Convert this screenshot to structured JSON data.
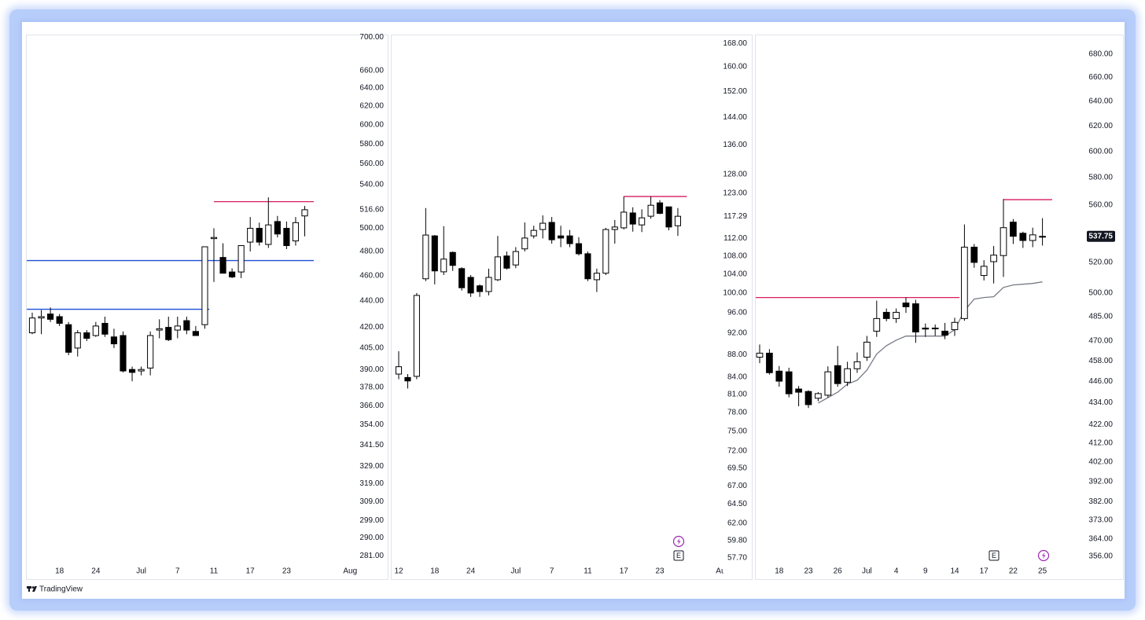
{
  "brand": "TradingView",
  "chart_data": [
    {
      "type": "candlestick",
      "log_scale": true,
      "up_color": "#ffffff",
      "down_color": "#000000",
      "categories": [
        null,
        null,
        null,
        "18",
        null,
        null,
        null,
        "24",
        null,
        null,
        null,
        null,
        "Jul",
        null,
        null,
        null,
        "7",
        null,
        null,
        null,
        "11",
        null,
        null,
        null,
        "17",
        null,
        null,
        null,
        "23",
        null,
        null,
        null,
        null,
        null,
        null,
        "Aug"
      ],
      "open": [
        416,
        427,
        430,
        428,
        422,
        405,
        416,
        414,
        423,
        413,
        414,
        390,
        389,
        391,
        418,
        420,
        418,
        425,
        417,
        422,
        491,
        475,
        463,
        463,
        488,
        500,
        486,
        506,
        500,
        489,
        511,
        null,
        null,
        null,
        null,
        null
      ],
      "high": [
        431,
        433,
        435,
        430,
        424,
        418,
        418,
        424,
        428,
        419,
        417,
        392,
        392,
        417,
        426,
        428,
        428,
        428,
        421,
        484,
        500,
        487,
        466,
        485,
        510,
        505,
        528,
        511,
        506,
        510,
        520,
        null,
        null,
        null,
        null,
        null
      ],
      "low": [
        415,
        415,
        424,
        421,
        400,
        399,
        410,
        413,
        413,
        405,
        388,
        382,
        386,
        386,
        412,
        410,
        412,
        415,
        414,
        419,
        455,
        462,
        458,
        458,
        480,
        485,
        483,
        492,
        482,
        485,
        493,
        null,
        null,
        null,
        null,
        null
      ],
      "close": [
        427,
        428,
        426,
        423,
        402,
        416,
        412,
        421,
        415,
        408,
        389,
        388,
        390,
        414,
        419,
        411,
        421,
        418,
        414,
        484,
        492,
        462,
        459,
        485,
        500,
        488,
        503,
        495,
        485,
        505,
        516.6,
        null,
        null,
        null,
        null,
        null
      ],
      "ylim": [
        278,
        707
      ],
      "yticks": [
        {
          "value": 700,
          "label": "700.00"
        },
        {
          "value": 660,
          "label": "660.00"
        },
        {
          "value": 640,
          "label": "640.00"
        },
        {
          "value": 620,
          "label": "620.00"
        },
        {
          "value": 600,
          "label": "600.00"
        },
        {
          "value": 580,
          "label": "580.00"
        },
        {
          "value": 560,
          "label": "560.00"
        },
        {
          "value": 540,
          "label": "540.00"
        },
        {
          "value": 500,
          "label": "500.00"
        },
        {
          "value": 480,
          "label": "480.00"
        },
        {
          "value": 460,
          "label": "460.00"
        },
        {
          "value": 440,
          "label": "440.00"
        },
        {
          "value": 420,
          "label": "420.00"
        },
        {
          "value": 405,
          "label": "405.00"
        },
        {
          "value": 390,
          "label": "390.00"
        },
        {
          "value": 378,
          "label": "378.00"
        },
        {
          "value": 366,
          "label": "366.00"
        },
        {
          "value": 354,
          "label": "354.00"
        },
        {
          "value": 341.5,
          "label": "341.50"
        },
        {
          "value": 329,
          "label": "329.00"
        },
        {
          "value": 319,
          "label": "319.00"
        },
        {
          "value": 309,
          "label": "309.00"
        },
        {
          "value": 299,
          "label": "299.00"
        },
        {
          "value": 290,
          "label": "290.00"
        },
        {
          "value": 281,
          "label": "281.00"
        }
      ],
      "last_price": {
        "value": 516.6,
        "label": "516.60"
      },
      "last_price_style": "plain",
      "hlines": [
        {
          "value": 524,
          "color": "#d81b60",
          "start": 20,
          "end": 31
        },
        {
          "value": 472.4,
          "color": "#1e4fd6",
          "start": -0.6,
          "end": 31
        },
        {
          "value": 433.6,
          "color": "#1e4fd6",
          "start": -0.6,
          "end": 19.5
        }
      ]
    },
    {
      "type": "candlestick",
      "log_scale": true,
      "up_color": "#ffffff",
      "down_color": "#000000",
      "categories": [
        "12",
        null,
        null,
        null,
        "18",
        null,
        null,
        null,
        "24",
        null,
        null,
        null,
        null,
        "Jul",
        null,
        null,
        null,
        "7",
        null,
        null,
        null,
        "11",
        null,
        null,
        null,
        "17",
        null,
        null,
        null,
        "23",
        null,
        null,
        null,
        null,
        null,
        null,
        "Aug"
      ],
      "open": [
        84.5,
        83.9,
        84.1,
        103,
        112.6,
        104.5,
        108.8,
        105.2,
        103.3,
        101.5,
        100.3,
        102.8,
        108,
        106,
        109.6,
        112.6,
        114.1,
        115.8,
        112.6,
        112.6,
        110.8,
        108.5,
        102.8,
        104.2,
        114.1,
        114.5,
        118.1,
        115.2,
        117.3,
        120.6,
        119.6,
        115,
        null,
        null,
        null,
        null,
        null
      ],
      "high": [
        88.6,
        84.5,
        100,
        119.3,
        112.8,
        114.9,
        109,
        105.5,
        103.8,
        101.8,
        105.2,
        112.6,
        109,
        110,
        115.8,
        115,
        117.5,
        117.1,
        115,
        114,
        112.3,
        109,
        105.2,
        114.5,
        116.4,
        122.2,
        119.5,
        119,
        122.2,
        121.3,
        119.6,
        119.3,
        null,
        null,
        null,
        null,
        null
      ],
      "low": [
        83.6,
        82,
        83.6,
        102.5,
        101.8,
        103.8,
        104.7,
        100.5,
        99.2,
        99.2,
        99.5,
        102.5,
        105,
        105.3,
        109,
        112,
        112,
        110.8,
        110,
        110,
        108.1,
        102.5,
        100.2,
        103.8,
        110.8,
        114.1,
        113.6,
        113.5,
        116.7,
        117.8,
        113.9,
        112.6,
        null,
        null,
        null,
        null,
        null
      ],
      "close": [
        85.8,
        83.3,
        99.5,
        112.8,
        104.7,
        107.3,
        105.9,
        101.1,
        100,
        100.3,
        103.3,
        107.8,
        105.3,
        109,
        112.1,
        113.9,
        115.6,
        111.7,
        112.1,
        110.8,
        108.5,
        103,
        104.2,
        114.1,
        114.7,
        118.3,
        115.4,
        116.9,
        120,
        118,
        114.7,
        117.29,
        null,
        null,
        null,
        null,
        null
      ],
      "ylim": [
        57.2,
        172.2
      ],
      "yticks": [
        {
          "value": 168,
          "label": "168.00"
        },
        {
          "value": 160,
          "label": "160.00"
        },
        {
          "value": 152,
          "label": "152.00"
        },
        {
          "value": 144,
          "label": "144.00"
        },
        {
          "value": 136,
          "label": "136.00"
        },
        {
          "value": 128,
          "label": "128.00"
        },
        {
          "value": 123,
          "label": "123.00"
        },
        {
          "value": 112,
          "label": "112.00"
        },
        {
          "value": 108,
          "label": "108.00"
        },
        {
          "value": 104,
          "label": "104.00"
        },
        {
          "value": 100,
          "label": "100.00"
        },
        {
          "value": 96,
          "label": "96.00"
        },
        {
          "value": 92,
          "label": "92.00"
        },
        {
          "value": 88,
          "label": "88.00"
        },
        {
          "value": 84,
          "label": "84.00"
        },
        {
          "value": 81,
          "label": "81.00"
        },
        {
          "value": 78,
          "label": "78.00"
        },
        {
          "value": 75,
          "label": "75.00"
        },
        {
          "value": 72,
          "label": "72.00"
        },
        {
          "value": 69.5,
          "label": "69.50"
        },
        {
          "value": 67,
          "label": "67.00"
        },
        {
          "value": 64.5,
          "label": "64.50"
        },
        {
          "value": 62,
          "label": "62.00"
        },
        {
          "value": 59.8,
          "label": "59.80"
        },
        {
          "value": 57.7,
          "label": "57.70"
        }
      ],
      "last_price": {
        "value": 117.29,
        "label": "117.29"
      },
      "last_price_style": "plain",
      "hlines": [
        {
          "value": 122.2,
          "color": "#d81b60",
          "start": 25,
          "end": 32
        }
      ],
      "event_label": "E"
    },
    {
      "type": "candlestick",
      "log_scale": true,
      "up_color": "#ffffff",
      "down_color": "#000000",
      "categories": [
        null,
        null,
        "18",
        null,
        null,
        "23",
        null,
        null,
        "26",
        null,
        null,
        "Jul",
        null,
        null,
        "4",
        null,
        null,
        "9",
        null,
        null,
        "14",
        null,
        null,
        "17",
        null,
        null,
        "22",
        null,
        null,
        "25",
        null,
        null,
        null,
        null
      ],
      "open": [
        460.2,
        462.6,
        452,
        451.6,
        441.7,
        440.3,
        436.5,
        438.2,
        455.2,
        445.6,
        453.4,
        460.2,
        475.9,
        487.6,
        483.7,
        493.5,
        493,
        477.8,
        477.4,
        475.9,
        476.8,
        483.7,
        530.3,
        511.3,
        520.5,
        524.6,
        547.7,
        539.9,
        534.9,
        537.7,
        null,
        null,
        null,
        null
      ],
      "high": [
        467.8,
        465,
        455,
        454,
        443.4,
        441,
        439.9,
        454.8,
        466.9,
        457.5,
        463,
        473,
        495,
        490,
        490,
        497,
        495.5,
        480.6,
        480,
        481,
        484.2,
        546.1,
        532.5,
        521.5,
        531.1,
        564.3,
        549.9,
        541,
        543.8,
        550.5,
        null,
        null,
        null,
        null
      ],
      "low": [
        456.7,
        450,
        443,
        437,
        432,
        431,
        434.8,
        436.9,
        443,
        443.4,
        451,
        458,
        472.4,
        482,
        481,
        487.2,
        468.8,
        472.4,
        473,
        471,
        473,
        482.3,
        516.4,
        508,
        506.1,
        510.3,
        532.5,
        529.8,
        530.3,
        531.4,
        null,
        null,
        null,
        null
      ],
      "close": [
        462.6,
        451.1,
        446.2,
        439,
        439.9,
        432.9,
        439.1,
        451.6,
        444.8,
        453.4,
        457.5,
        469.2,
        483.7,
        483.7,
        487.6,
        491.1,
        475.4,
        477.2,
        477.8,
        473.5,
        481.3,
        530.3,
        520,
        517.4,
        524.9,
        543.8,
        537.8,
        534.9,
        538.8,
        537.75,
        null,
        null,
        null,
        null
      ],
      "series": [
        {
          "color": "#787b86",
          "values": [
            null,
            null,
            null,
            null,
            null,
            null,
            433.8,
            436.8,
            439.9,
            444.5,
            446.7,
            452.6,
            462.1,
            467.1,
            470.4,
            472.9,
            472.9,
            472.9,
            472.9,
            472.9,
            476.8,
            488.6,
            496.0,
            497.0,
            497.5,
            503.5,
            505.1,
            505.6,
            506.1,
            507.1,
            null,
            null,
            null,
            null
          ]
        }
      ],
      "ylim": [
        353.5,
        700.3
      ],
      "yticks": [
        {
          "value": 680,
          "label": "680.00"
        },
        {
          "value": 660,
          "label": "660.00"
        },
        {
          "value": 640,
          "label": "640.00"
        },
        {
          "value": 620,
          "label": "620.00"
        },
        {
          "value": 600,
          "label": "600.00"
        },
        {
          "value": 580,
          "label": "580.00"
        },
        {
          "value": 560,
          "label": "560.00"
        },
        {
          "value": 520,
          "label": "520.00"
        },
        {
          "value": 500,
          "label": "500.00"
        },
        {
          "value": 485,
          "label": "485.00"
        },
        {
          "value": 470,
          "label": "470.00"
        },
        {
          "value": 458,
          "label": "458.00"
        },
        {
          "value": 446,
          "label": "446.00"
        },
        {
          "value": 434,
          "label": "434.00"
        },
        {
          "value": 422,
          "label": "422.00"
        },
        {
          "value": 412,
          "label": "412.00"
        },
        {
          "value": 402,
          "label": "402.00"
        },
        {
          "value": 392,
          "label": "392.00"
        },
        {
          "value": 382,
          "label": "382.00"
        },
        {
          "value": 373,
          "label": "373.00"
        },
        {
          "value": 364,
          "label": "364.00"
        },
        {
          "value": 356,
          "label": "356.00"
        }
      ],
      "last_price": {
        "value": 537.75,
        "label": "537.75"
      },
      "last_price_style": "dark",
      "hlines": [
        {
          "value": 563.8,
          "color": "#d81b60",
          "start": 25,
          "end": 30
        },
        {
          "value": 497,
          "color": "#d81b60",
          "start": -0.5,
          "end": 20.5
        }
      ],
      "event_label": "E"
    }
  ]
}
